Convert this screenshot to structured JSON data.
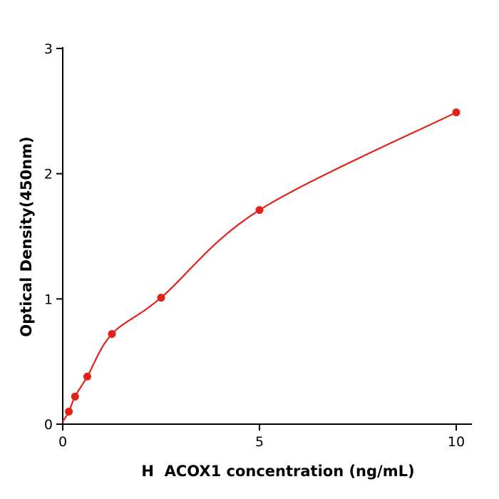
{
  "chart_data": {
    "type": "scatter",
    "title": "",
    "xlabel": "H  ACOX1 concentration (ng/mL)",
    "ylabel": "Optical Density(450nm)",
    "x": [
      0.156,
      0.3125,
      0.625,
      1.25,
      2.5,
      5,
      10
    ],
    "y": [
      0.1,
      0.22,
      0.38,
      0.72,
      1.01,
      1.71,
      2.49
    ],
    "curve_start": {
      "x": 0,
      "y": 0.02
    },
    "xlim": [
      0,
      10.4
    ],
    "ylim": [
      0,
      3
    ],
    "xticks": [
      0,
      5,
      10
    ],
    "yticks": [
      0,
      1,
      2,
      3
    ],
    "accent_color": "#e32119",
    "axis_color": "#000000",
    "background": "#ffffff",
    "grid": false,
    "legend": null,
    "marker": "circle",
    "marker_radius": 5.5,
    "line": "smooth"
  }
}
